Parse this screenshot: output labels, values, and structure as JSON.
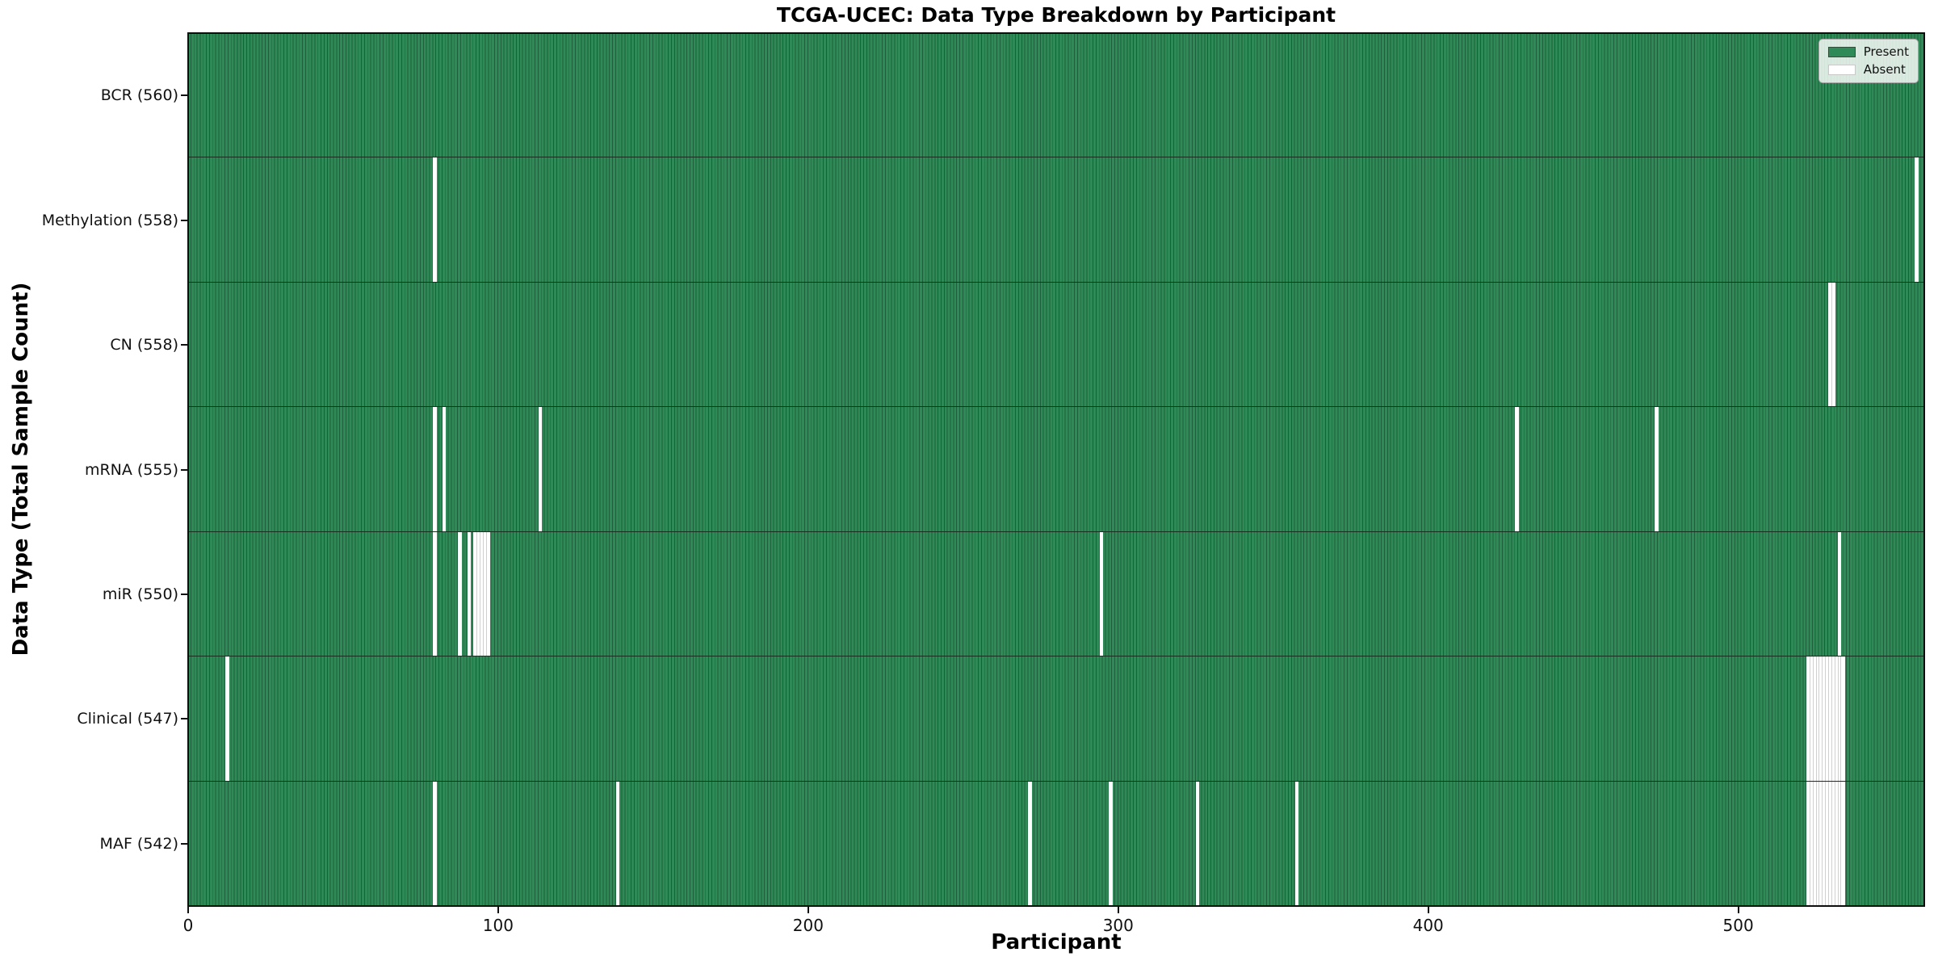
{
  "chart_data": {
    "type": "heatmap",
    "title": "TCGA-UCEC: Data Type Breakdown by Participant",
    "xlabel": "Participant",
    "ylabel": "Data Type (Total Sample Count)",
    "x_ticks": [
      0,
      100,
      200,
      300,
      400,
      500
    ],
    "xlim": [
      0,
      560
    ],
    "n_participants": 560,
    "legend_position": "upper right",
    "legend": [
      {
        "label": "Present",
        "color": "#2e8b57",
        "edge": "#2f4f3a"
      },
      {
        "label": "Absent",
        "color": "#ffffff",
        "edge": "#c9c9c9"
      }
    ],
    "colors": {
      "present_fill": "#2e8b57",
      "present_edge": "#1f5e3a",
      "absent_fill": "#ffffff",
      "absent_edge": "#cfcfcf",
      "row_divider": "#16301f"
    },
    "rows": [
      {
        "data_type": "BCR",
        "label": "BCR (560)",
        "present_count": 560,
        "absent_participants": []
      },
      {
        "data_type": "Methylation",
        "label": "Methylation (558)",
        "present_count": 558,
        "absent_participants": [
          79,
          557
        ]
      },
      {
        "data_type": "CN",
        "label": "CN (558)",
        "present_count": 558,
        "absent_participants": [
          529,
          530
        ]
      },
      {
        "data_type": "mRNA",
        "label": "mRNA (555)",
        "present_count": 555,
        "absent_participants": [
          79,
          82,
          113,
          428,
          473
        ]
      },
      {
        "data_type": "miR",
        "label": "miR (550)",
        "present_count": 550,
        "absent_participants": [
          79,
          87,
          90,
          92,
          93,
          94,
          95,
          96,
          294,
          532
        ]
      },
      {
        "data_type": "Clinical",
        "label": "Clinical (547)",
        "present_count": 547,
        "absent_participants": [
          12,
          522,
          523,
          524,
          525,
          526,
          527,
          528,
          529,
          530,
          531,
          532,
          533
        ]
      },
      {
        "data_type": "MAF",
        "label": "MAF (542)",
        "present_count": 542,
        "absent_participants": [
          79,
          138,
          271,
          297,
          325,
          357,
          522,
          523,
          524,
          525,
          526,
          527,
          528,
          529,
          530,
          531,
          532,
          533
        ]
      }
    ]
  }
}
